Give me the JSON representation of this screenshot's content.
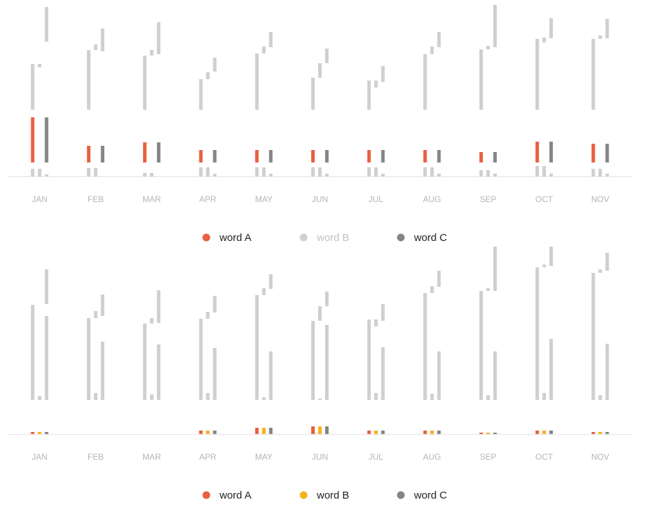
{
  "colors": {
    "word_a": "#e8603f",
    "word_b": "#f5b21b",
    "word_c": "#858585",
    "ghost": "#cfcfcf",
    "axis": "#e3e3e3",
    "legend_text": "#222222",
    "legend_text_muted": "#c2c2c2"
  },
  "chart_data": [
    {
      "type": "bar",
      "categories": [
        "JAN",
        "FEB",
        "MAR",
        "APR",
        "MAY",
        "JUN",
        "JUL",
        "AUG",
        "SEP",
        "OCT",
        "NOV"
      ],
      "series": [
        {
          "name": "word A",
          "color": "#e8603f",
          "values": [
            65,
            24,
            29,
            18,
            18,
            18,
            18,
            18,
            15,
            30,
            27
          ]
        },
        {
          "name": "word B",
          "color": "#cfcfcf",
          "values": [
            0,
            0,
            0,
            0,
            0,
            0,
            0,
            0,
            0,
            0,
            0
          ],
          "muted": true
        },
        {
          "name": "word C",
          "color": "#858585",
          "values": [
            65,
            24,
            29,
            18,
            18,
            18,
            18,
            18,
            15,
            30,
            27
          ]
        }
      ],
      "legend": [
        {
          "label": "word A",
          "color": "#e8603f",
          "muted": false
        },
        {
          "label": "word B",
          "color": "#cfcfcf",
          "muted": true
        },
        {
          "label": "word C",
          "color": "#858585",
          "muted": false
        }
      ],
      "legend_position": "bottom-center",
      "ghost_bars": {
        "bottom": [
          [
            11,
            11,
            3
          ],
          [
            12,
            12,
            0
          ],
          [
            5,
            5,
            0
          ],
          [
            13,
            13,
            4
          ],
          [
            13,
            13,
            4
          ],
          [
            13,
            13,
            4
          ],
          [
            13,
            13,
            4
          ],
          [
            13,
            13,
            4
          ],
          [
            9,
            9,
            4
          ],
          [
            15,
            15,
            4
          ],
          [
            11,
            11,
            4
          ]
        ],
        "top": [
          [
            [
              0,
              66
            ],
            [
              61,
              66
            ],
            [
              98,
              148
            ]
          ],
          [
            [
              0,
              86
            ],
            [
              86,
              94
            ],
            [
              84,
              117
            ]
          ],
          [
            [
              0,
              78
            ],
            [
              78,
              86
            ],
            [
              80,
              126
            ]
          ],
          [
            [
              0,
              44
            ],
            [
              44,
              54
            ],
            [
              55,
              75
            ]
          ],
          [
            [
              0,
              81
            ],
            [
              81,
              91
            ],
            [
              90,
              112
            ]
          ],
          [
            [
              0,
              46
            ],
            [
              46,
              67
            ],
            [
              67,
              88
            ]
          ],
          [
            [
              0,
              42
            ],
            [
              32,
              42
            ],
            [
              40,
              63
            ]
          ],
          [
            [
              0,
              80
            ],
            [
              80,
              91
            ],
            [
              90,
              112
            ]
          ],
          [
            [
              0,
              87
            ],
            [
              87,
              92
            ],
            [
              90,
              151
            ]
          ],
          [
            [
              0,
              102
            ],
            [
              97,
              104
            ],
            [
              103,
              132
            ]
          ],
          [
            [
              0,
              102
            ],
            [
              102,
              107
            ],
            [
              103,
              131
            ]
          ]
        ]
      },
      "ylim": [
        0,
        250
      ]
    },
    {
      "type": "bar",
      "categories": [
        "JAN",
        "FEB",
        "MAR",
        "APR",
        "MAY",
        "JUN",
        "JUL",
        "AUG",
        "SEP",
        "OCT",
        "NOV"
      ],
      "series": [
        {
          "name": "word A",
          "color": "#e8603f",
          "values": [
            3,
            0,
            0,
            5,
            9,
            11,
            5,
            5,
            2,
            5,
            3
          ]
        },
        {
          "name": "word B",
          "color": "#f5b21b",
          "values": [
            3,
            0,
            0,
            5,
            9,
            11,
            5,
            5,
            2,
            5,
            3
          ]
        },
        {
          "name": "word C",
          "color": "#858585",
          "values": [
            3,
            0,
            0,
            5,
            9,
            11,
            5,
            5,
            2,
            5,
            3
          ]
        }
      ],
      "legend": [
        {
          "label": "word A",
          "color": "#e8603f",
          "muted": false
        },
        {
          "label": "word B",
          "color": "#f5b21b",
          "muted": false
        },
        {
          "label": "word C",
          "color": "#858585",
          "muted": false
        }
      ],
      "legend_position": "bottom-center",
      "ghost_bars": {
        "top": [
          [
            [
              0,
              137
            ],
            [
              0,
              6
            ],
            [
              0,
              121
            ]
          ],
          [
            [
              0,
              118
            ],
            [
              0,
              10
            ],
            [
              0,
              84
            ]
          ],
          [
            [
              0,
              110
            ],
            [
              0,
              8
            ],
            [
              0,
              80
            ]
          ],
          [
            [
              0,
              117
            ],
            [
              0,
              10
            ],
            [
              0,
              75
            ]
          ],
          [
            [
              0,
              151
            ],
            [
              0,
              4
            ],
            [
              0,
              70
            ]
          ],
          [
            [
              0,
              114
            ],
            [
              0,
              2
            ],
            [
              0,
              108
            ]
          ],
          [
            [
              0,
              116
            ],
            [
              0,
              10
            ],
            [
              0,
              76
            ]
          ],
          [
            [
              0,
              154
            ],
            [
              0,
              9
            ],
            [
              0,
              70
            ]
          ],
          [
            [
              0,
              157
            ],
            [
              0,
              7
            ],
            [
              0,
              70
            ]
          ],
          [
            [
              0,
              191
            ],
            [
              0,
              10
            ],
            [
              0,
              88
            ]
          ],
          [
            [
              0,
              183
            ],
            [
              0,
              7
            ],
            [
              0,
              81
            ]
          ]
        ],
        "upper": [
          [
            [
              0,
              0
            ],
            [
              0,
              0
            ],
            [
              138,
              188
            ]
          ],
          [
            [
              0,
              0
            ],
            [
              118,
              128
            ],
            [
              121,
              152
            ]
          ],
          [
            [
              0,
              0
            ],
            [
              110,
              118
            ],
            [
              111,
              158
            ]
          ],
          [
            [
              0,
              0
            ],
            [
              117,
              127
            ],
            [
              126,
              150
            ]
          ],
          [
            [
              0,
              0
            ],
            [
              151,
              161
            ],
            [
              160,
              181
            ]
          ],
          [
            [
              0,
              0
            ],
            [
              114,
              135
            ],
            [
              135,
              156
            ]
          ],
          [
            [
              0,
              0
            ],
            [
              106,
              116
            ],
            [
              114,
              138
            ]
          ],
          [
            [
              0,
              0
            ],
            [
              154,
              164
            ],
            [
              163,
              186
            ]
          ],
          [
            [
              0,
              0
            ],
            [
              157,
              161
            ],
            [
              157,
              221
            ]
          ],
          [
            [
              0,
              0
            ],
            [
              191,
              195
            ],
            [
              193,
              221
            ]
          ],
          [
            [
              0,
              0
            ],
            [
              183,
              188
            ],
            [
              186,
              212
            ]
          ]
        ]
      },
      "ylim": [
        0,
        250
      ]
    }
  ]
}
